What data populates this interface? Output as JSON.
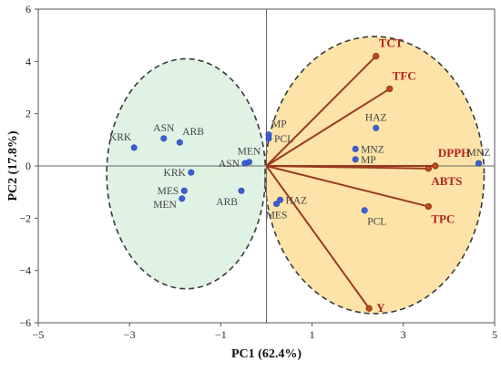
{
  "chart_data": {
    "type": "scatter",
    "subtype": "pca-biplot",
    "title": "",
    "xlabel": "PC1 (62.4%)",
    "ylabel": "PC2 (17.8%)",
    "xlim": [
      -5,
      5
    ],
    "ylim": [
      -6,
      6
    ],
    "x_ticks": [
      -5,
      -3,
      -1,
      1,
      3,
      5
    ],
    "y_ticks": [
      -6,
      -4,
      -2,
      0,
      2,
      4,
      6
    ],
    "grid": false,
    "legend": "none",
    "colors": {
      "point": "#3c5fd4",
      "vector": "#9a3a1e",
      "vector_tip": "#c24a17",
      "var_label": "#b0231b",
      "group_left_fill": "#dff2e4",
      "group_right_fill": "#fde3a7",
      "ellipse_stroke": "#3a3a3a"
    },
    "groups": [
      {
        "id": "left",
        "center": [
          -1.76,
          -0.3
        ],
        "rx": 1.74,
        "ry": 4.4
      },
      {
        "id": "right",
        "center": [
          2.37,
          -0.35
        ],
        "rx": 2.4,
        "ry": 5.3
      }
    ],
    "samples": [
      {
        "label": "KRK",
        "x": -2.9,
        "y": 0.7,
        "label_pos": "above-left"
      },
      {
        "label": "ASN",
        "x": -2.25,
        "y": 1.05,
        "label_pos": "above"
      },
      {
        "label": "ARB",
        "x": -1.9,
        "y": 0.9,
        "label_pos": "above-right"
      },
      {
        "label": "KRK",
        "x": -1.65,
        "y": -0.25,
        "label_pos": "left"
      },
      {
        "label": "MES",
        "x": -1.8,
        "y": -0.95,
        "label_pos": "left"
      },
      {
        "label": "MEN",
        "x": -1.85,
        "y": -1.25,
        "label_pos": "left-below"
      },
      {
        "label": "ARB",
        "x": -0.55,
        "y": -0.95,
        "label_pos": "below-left"
      },
      {
        "label": "ASN",
        "x": -0.47,
        "y": 0.1,
        "label_pos": "left"
      },
      {
        "label": "MEN",
        "x": -0.38,
        "y": 0.15,
        "label_pos": "above"
      },
      {
        "label": "MP",
        "x": 0.05,
        "y": 1.2,
        "label_pos": "above-right"
      },
      {
        "label": "PCL",
        "x": 0.05,
        "y": 1.05,
        "label_pos": "right"
      },
      {
        "label": "HAZ",
        "x": 0.3,
        "y": -1.3,
        "label_pos": "right"
      },
      {
        "label": "MES",
        "x": 0.22,
        "y": -1.45,
        "label_pos": "below"
      },
      {
        "label": "HAZ",
        "x": 2.4,
        "y": 1.45,
        "label_pos": "above"
      },
      {
        "label": "MNZ",
        "x": 1.95,
        "y": 0.65,
        "label_pos": "right"
      },
      {
        "label": "MP",
        "x": 1.95,
        "y": 0.25,
        "label_pos": "right"
      },
      {
        "label": "PCL",
        "x": 2.15,
        "y": -1.7,
        "label_pos": "below-right"
      },
      {
        "label": "MNZ",
        "x": 4.65,
        "y": 0.1,
        "label_pos": "above"
      }
    ],
    "variables": [
      {
        "label": "TCT",
        "x": 2.4,
        "y": 4.2,
        "label_pos": "above-right"
      },
      {
        "label": "TFC",
        "x": 2.7,
        "y": 2.95,
        "label_pos": "above-right"
      },
      {
        "label": "DPPH",
        "x": 3.7,
        "y": 0.0,
        "label_pos": "above-right"
      },
      {
        "label": "ABTS",
        "x": 3.55,
        "y": -0.1,
        "label_pos": "below-right"
      },
      {
        "label": "TPC",
        "x": 3.55,
        "y": -1.55,
        "label_pos": "below-right"
      },
      {
        "label": "Y",
        "x": 2.25,
        "y": -5.45,
        "label_pos": "right"
      }
    ]
  }
}
